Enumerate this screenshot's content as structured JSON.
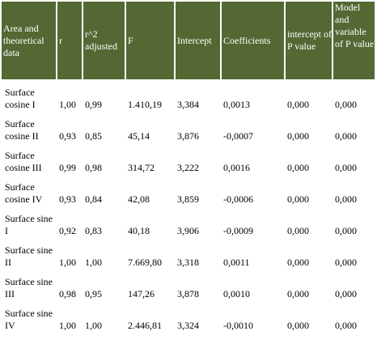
{
  "headers": [
    "Area and theoretical data",
    "r",
    "r^2 adjusted",
    "F",
    "Intercept",
    "Coefficients",
    "intercept of P value",
    "Model and variable of P value"
  ],
  "rows": [
    [
      "Surface cosine I",
      "1,00",
      "0,99",
      "1.410,19",
      "3,384",
      "0,0013",
      "0,000",
      "0,000"
    ],
    [
      "Surface cosine II",
      "0,93",
      "0,85",
      "45,14",
      "3,876",
      "-0,0007",
      "0,000",
      "0,000"
    ],
    [
      "Surface cosine III",
      "0,99",
      "0,98",
      "314,72",
      "3,222",
      "0,0016",
      "0,000",
      "0,000"
    ],
    [
      "Surface cosine IV",
      "0,93",
      "0,84",
      "42,08",
      "3,859",
      "-0,0006",
      "0,000",
      "0,000"
    ],
    [
      "Surface sine I",
      "0,92",
      "0,83",
      "40,18",
      "3,906",
      "-0,0009",
      "0,000",
      "0,000"
    ],
    [
      "Surface sine II",
      "1,00",
      "1,00",
      "7.669,80",
      "3,318",
      "0,0011",
      "0,000",
      "0,000"
    ],
    [
      "Surface sine III",
      "0,98",
      "0,95",
      "147,26",
      "3,878",
      "0,0010",
      "0,000",
      "0,000"
    ],
    [
      "Surface sine IV",
      "1,00",
      "1,00",
      "2.446,81",
      "3,324",
      "-0,0010",
      "0,000",
      "0,000"
    ]
  ],
  "colors": {
    "header_background": "#546834",
    "header_text": "#ffffff"
  }
}
